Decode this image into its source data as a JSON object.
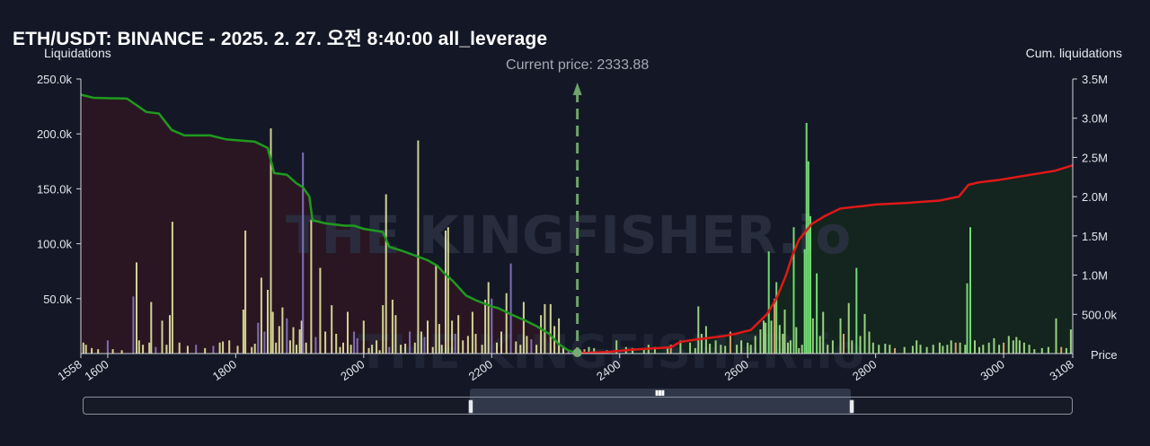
{
  "title": "ETH/USDT: BINANCE - 2025. 2. 27. 오전 8:40:00 all_leverage",
  "watermark": "THE KINGFISHER.io",
  "chart_data": {
    "type": "bar",
    "title": "ETH/USDT: BINANCE - 2025. 2. 27. 오전 8:40:00 all_leverage",
    "ylabel_left": "Liquidations",
    "ylabel_right": "Cum. liquidations",
    "xlabel": "Price",
    "current_price": 2333.88,
    "current_price_label": "Current price: 2333.88",
    "xlim": [
      1558,
      3108
    ],
    "ylim_left": [
      0,
      250000
    ],
    "ylim_right": [
      0,
      3500000
    ],
    "x_ticks": [
      1558,
      1600,
      1800,
      2000,
      2200,
      2400,
      2600,
      2800,
      3000,
      3108
    ],
    "x_tick_labels": [
      "1558",
      "1600",
      "1800",
      "2000",
      "2200",
      "2400",
      "2600",
      "2800",
      "3000",
      "3108"
    ],
    "y_left_ticks": [
      50000,
      100000,
      150000,
      200000,
      250000
    ],
    "y_left_tick_labels": [
      "50.0k",
      "100.0k",
      "150.0k",
      "200.0k",
      "250.0k"
    ],
    "y_right_ticks": [
      500000,
      1000000,
      1500000,
      2000000,
      2500000,
      3000000,
      3500000
    ],
    "y_right_tick_labels": [
      "500.0k",
      "1.0M",
      "1.5M",
      "2.0M",
      "2.5M",
      "3.0M",
      "3.5M"
    ],
    "colors": {
      "bar_low": "#e6e8a0",
      "bar_mid": "#a8e58a",
      "bar_high": "#7cf07c",
      "bar_purple": "#8878c8",
      "bar_orange": "#e8b070",
      "cum_short": "#1f9a1f",
      "cum_long": "#e01818",
      "fill_left": "#2a1622",
      "fill_right": "#13251e",
      "current_price_line": "#6fa36a"
    },
    "series": [
      {
        "name": "liquidations",
        "points": [
          [
            1562,
            10000
          ],
          [
            1566,
            8000
          ],
          [
            1575,
            5000
          ],
          [
            1585,
            4000
          ],
          [
            1600,
            12000
          ],
          [
            1608,
            4000
          ],
          [
            1622,
            3000
          ],
          [
            1640,
            52000
          ],
          [
            1645,
            83000
          ],
          [
            1649,
            12000
          ],
          [
            1655,
            8000
          ],
          [
            1665,
            10000
          ],
          [
            1668,
            47000
          ],
          [
            1675,
            6000
          ],
          [
            1685,
            30000
          ],
          [
            1692,
            8000
          ],
          [
            1697,
            35000
          ],
          [
            1701,
            120000
          ],
          [
            1712,
            10000
          ],
          [
            1725,
            7000
          ],
          [
            1738,
            8000
          ],
          [
            1752,
            5000
          ],
          [
            1765,
            7000
          ],
          [
            1775,
            10000
          ],
          [
            1780,
            11000
          ],
          [
            1790,
            12000
          ],
          [
            1803,
            7000
          ],
          [
            1812,
            40000
          ],
          [
            1815,
            112000
          ],
          [
            1825,
            6000
          ],
          [
            1830,
            9000
          ],
          [
            1835,
            28000
          ],
          [
            1840,
            69000
          ],
          [
            1845,
            20000
          ],
          [
            1850,
            58000
          ],
          [
            1855,
            205000
          ],
          [
            1858,
            38000
          ],
          [
            1863,
            10000
          ],
          [
            1868,
            25000
          ],
          [
            1873,
            42000
          ],
          [
            1880,
            32000
          ],
          [
            1885,
            12000
          ],
          [
            1890,
            24000
          ],
          [
            1895,
            8000
          ],
          [
            1900,
            22000
          ],
          [
            1903,
            30000
          ],
          [
            1905,
            183000
          ],
          [
            1910,
            10000
          ],
          [
            1918,
            122000
          ],
          [
            1925,
            15000
          ],
          [
            1932,
            78000
          ],
          [
            1940,
            20000
          ],
          [
            1950,
            44000
          ],
          [
            1957,
            18000
          ],
          [
            1963,
            6000
          ],
          [
            1968,
            10000
          ],
          [
            1975,
            38000
          ],
          [
            1980,
            8000
          ],
          [
            1985,
            20000
          ],
          [
            1990,
            14000
          ],
          [
            2000,
            30000
          ],
          [
            2008,
            5000
          ],
          [
            2013,
            8000
          ],
          [
            2020,
            12000
          ],
          [
            2025,
            3000
          ],
          [
            2030,
            44000
          ],
          [
            2035,
            145000
          ],
          [
            2040,
            6000
          ],
          [
            2045,
            49000
          ],
          [
            2050,
            35000
          ],
          [
            2058,
            8000
          ],
          [
            2065,
            9000
          ],
          [
            2072,
            20000
          ],
          [
            2080,
            10000
          ],
          [
            2085,
            194000
          ],
          [
            2090,
            20000
          ],
          [
            2095,
            15000
          ],
          [
            2100,
            30000
          ],
          [
            2108,
            6000
          ],
          [
            2113,
            81000
          ],
          [
            2118,
            27000
          ],
          [
            2122,
            8000
          ],
          [
            2128,
            112000
          ],
          [
            2132,
            115000
          ],
          [
            2138,
            30000
          ],
          [
            2143,
            18000
          ],
          [
            2148,
            35000
          ],
          [
            2155,
            12000
          ],
          [
            2163,
            16000
          ],
          [
            2170,
            38000
          ],
          [
            2175,
            18000
          ],
          [
            2185,
            8000
          ],
          [
            2190,
            49000
          ],
          [
            2195,
            65000
          ],
          [
            2200,
            50000
          ],
          [
            2208,
            10000
          ],
          [
            2215,
            20000
          ],
          [
            2223,
            55000
          ],
          [
            2230,
            82000
          ],
          [
            2238,
            11000
          ],
          [
            2245,
            8000
          ],
          [
            2250,
            47000
          ],
          [
            2255,
            16000
          ],
          [
            2262,
            13000
          ],
          [
            2270,
            8000
          ],
          [
            2277,
            35000
          ],
          [
            2283,
            45000
          ],
          [
            2292,
            45000
          ],
          [
            2298,
            25000
          ],
          [
            2305,
            32000
          ],
          [
            2312,
            5000
          ],
          [
            2320,
            3000
          ],
          [
            2330,
            2000
          ],
          [
            2345,
            4000
          ],
          [
            2352,
            6000
          ],
          [
            2360,
            5000
          ],
          [
            2380,
            3000
          ],
          [
            2395,
            12000
          ],
          [
            2410,
            6000
          ],
          [
            2420,
            5000
          ],
          [
            2438,
            4000
          ],
          [
            2445,
            8000
          ],
          [
            2455,
            6000
          ],
          [
            2475,
            5000
          ],
          [
            2480,
            8000
          ],
          [
            2495,
            12000
          ],
          [
            2510,
            10000
          ],
          [
            2518,
            5000
          ],
          [
            2523,
            43000
          ],
          [
            2528,
            18000
          ],
          [
            2535,
            25000
          ],
          [
            2541,
            9000
          ],
          [
            2550,
            12000
          ],
          [
            2558,
            8000
          ],
          [
            2565,
            7000
          ],
          [
            2573,
            20000
          ],
          [
            2583,
            8000
          ],
          [
            2590,
            12000
          ],
          [
            2600,
            10000
          ],
          [
            2605,
            8000
          ],
          [
            2612,
            16000
          ],
          [
            2620,
            22000
          ],
          [
            2625,
            30000
          ],
          [
            2628,
            28000
          ],
          [
            2633,
            93000
          ],
          [
            2637,
            30000
          ],
          [
            2642,
            50000
          ],
          [
            2645,
            65000
          ],
          [
            2650,
            26000
          ],
          [
            2655,
            18000
          ],
          [
            2658,
            40000
          ],
          [
            2663,
            10000
          ],
          [
            2667,
            12000
          ],
          [
            2672,
            115000
          ],
          [
            2676,
            24000
          ],
          [
            2680,
            5000
          ],
          [
            2685,
            8000
          ],
          [
            2689,
            95000
          ],
          [
            2692,
            210000
          ],
          [
            2695,
            175000
          ],
          [
            2698,
            125000
          ],
          [
            2702,
            32000
          ],
          [
            2708,
            73000
          ],
          [
            2713,
            16000
          ],
          [
            2718,
            38000
          ],
          [
            2725,
            8000
          ],
          [
            2733,
            12000
          ],
          [
            2745,
            32000
          ],
          [
            2750,
            18000
          ],
          [
            2758,
            46000
          ],
          [
            2763,
            12000
          ],
          [
            2770,
            78000
          ],
          [
            2776,
            16000
          ],
          [
            2783,
            36000
          ],
          [
            2790,
            20000
          ],
          [
            2796,
            10000
          ],
          [
            2805,
            8000
          ],
          [
            2815,
            9000
          ],
          [
            2822,
            8000
          ],
          [
            2830,
            5000
          ],
          [
            2845,
            6000
          ],
          [
            2858,
            7000
          ],
          [
            2864,
            12000
          ],
          [
            2870,
            8000
          ],
          [
            2880,
            6000
          ],
          [
            2890,
            8000
          ],
          [
            2900,
            10000
          ],
          [
            2905,
            7000
          ],
          [
            2912,
            8000
          ],
          [
            2918,
            12000
          ],
          [
            2925,
            10000
          ],
          [
            2932,
            10000
          ],
          [
            2940,
            8000
          ],
          [
            2943,
            64000
          ],
          [
            2948,
            115000
          ],
          [
            2955,
            12000
          ],
          [
            2962,
            6000
          ],
          [
            2968,
            8000
          ],
          [
            2977,
            10000
          ],
          [
            2985,
            14000
          ],
          [
            2993,
            8000
          ],
          [
            3000,
            10000
          ],
          [
            3008,
            16000
          ],
          [
            3015,
            12000
          ],
          [
            3020,
            15000
          ],
          [
            3025,
            12000
          ],
          [
            3032,
            10000
          ],
          [
            3040,
            8000
          ],
          [
            3048,
            4000
          ],
          [
            3060,
            5000
          ],
          [
            3070,
            6000
          ],
          [
            3082,
            32000
          ],
          [
            3090,
            6000
          ],
          [
            3098,
            5000
          ],
          [
            3105,
            22000
          ]
        ]
      },
      {
        "name": "cum_short",
        "points": [
          [
            1558,
            3300000
          ],
          [
            1578,
            3260000
          ],
          [
            1630,
            3250000
          ],
          [
            1648,
            3150000
          ],
          [
            1660,
            3080000
          ],
          [
            1680,
            3060000
          ],
          [
            1700,
            2850000
          ],
          [
            1720,
            2780000
          ],
          [
            1760,
            2780000
          ],
          [
            1785,
            2730000
          ],
          [
            1830,
            2700000
          ],
          [
            1850,
            2620000
          ],
          [
            1860,
            2300000
          ],
          [
            1880,
            2280000
          ],
          [
            1895,
            2170000
          ],
          [
            1905,
            2120000
          ],
          [
            1915,
            2000000
          ],
          [
            1920,
            1700000
          ],
          [
            1940,
            1660000
          ],
          [
            1970,
            1630000
          ],
          [
            1985,
            1630000
          ],
          [
            2000,
            1590000
          ],
          [
            2030,
            1550000
          ],
          [
            2040,
            1360000
          ],
          [
            2060,
            1310000
          ],
          [
            2080,
            1250000
          ],
          [
            2100,
            1190000
          ],
          [
            2115,
            1120000
          ],
          [
            2125,
            1030000
          ],
          [
            2140,
            920000
          ],
          [
            2160,
            740000
          ],
          [
            2175,
            680000
          ],
          [
            2200,
            600000
          ],
          [
            2210,
            580000
          ],
          [
            2230,
            500000
          ],
          [
            2250,
            430000
          ],
          [
            2270,
            350000
          ],
          [
            2290,
            250000
          ],
          [
            2305,
            120000
          ],
          [
            2320,
            40000
          ],
          [
            2333,
            5000
          ]
        ]
      },
      {
        "name": "cum_long",
        "points": [
          [
            2333,
            5000
          ],
          [
            2380,
            20000
          ],
          [
            2420,
            50000
          ],
          [
            2480,
            80000
          ],
          [
            2495,
            150000
          ],
          [
            2520,
            180000
          ],
          [
            2560,
            220000
          ],
          [
            2580,
            250000
          ],
          [
            2605,
            300000
          ],
          [
            2630,
            500000
          ],
          [
            2645,
            700000
          ],
          [
            2660,
            1000000
          ],
          [
            2670,
            1250000
          ],
          [
            2680,
            1450000
          ],
          [
            2700,
            1650000
          ],
          [
            2720,
            1750000
          ],
          [
            2745,
            1850000
          ],
          [
            2780,
            1880000
          ],
          [
            2800,
            1900000
          ],
          [
            2850,
            1920000
          ],
          [
            2900,
            1950000
          ],
          [
            2930,
            2000000
          ],
          [
            2945,
            2150000
          ],
          [
            2960,
            2180000
          ],
          [
            2990,
            2210000
          ],
          [
            3020,
            2250000
          ],
          [
            3050,
            2290000
          ],
          [
            3080,
            2330000
          ],
          [
            3108,
            2400000
          ]
        ]
      }
    ]
  }
}
